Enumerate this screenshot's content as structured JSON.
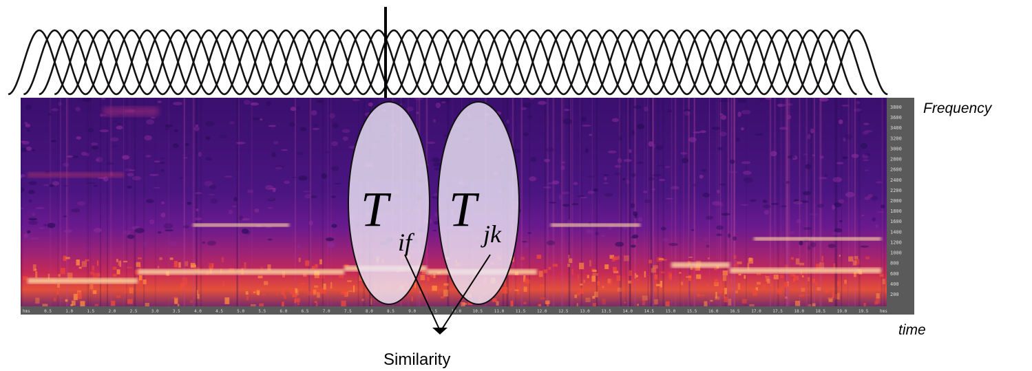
{
  "labels": {
    "frequency": "Frequency",
    "time": "time",
    "similarity": "Similarity"
  },
  "tokens": [
    {
      "main": "T",
      "sub": "if"
    },
    {
      "main": "T",
      "sub": "jk"
    }
  ],
  "y_ticks": [
    "3800",
    "3600",
    "3400",
    "3200",
    "3000",
    "2800",
    "2600",
    "2400",
    "2200",
    "2000",
    "1800",
    "1600",
    "1400",
    "1200",
    "1000",
    "800",
    "600",
    "400",
    "200"
  ],
  "x_ticks": [
    "hms",
    "0.5",
    "1.0",
    "1.5",
    "2.0",
    "2.5",
    "3.0",
    "3.5",
    "4.0",
    "4.5",
    "5.0",
    "5.5",
    "6.0",
    "6.5",
    "7.0",
    "7.5",
    "8.0",
    "8.5",
    "9.0",
    "9.5",
    "10.0",
    "10.5",
    "11.0",
    "11.5",
    "12.0",
    "12.5",
    "13.0",
    "13.5",
    "14.0",
    "14.5",
    "15.0",
    "15.5",
    "16.0",
    "16.5",
    "17.0",
    "17.5",
    "18.0",
    "18.5",
    "19.0",
    "19.5",
    "hms"
  ],
  "colors": {
    "spectro_dark": "#3a0f6e",
    "spectro_mid": "#7a1f9a",
    "spectro_hot": "#e0304a",
    "spectro_band": "#ffd09a",
    "ellipse_fill": "#e6def0",
    "axis_panel": "#5a5a5a"
  }
}
